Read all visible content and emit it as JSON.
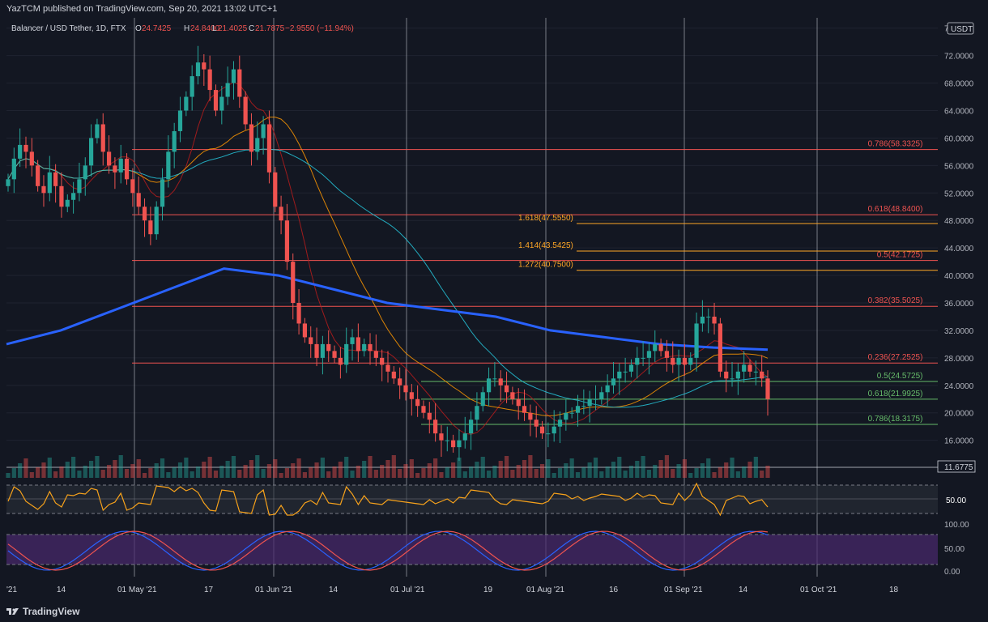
{
  "header": {
    "published": "YazTCM published on TradingView.com, Sep 20, 2021 13:02 UTC+1"
  },
  "legend": {
    "symbol": "Balancer / USD Tether, 1D, FTX",
    "open_label": "O",
    "open": "24.7425",
    "high_label": "H",
    "high": "24.8400",
    "low_label": "L",
    "low": "21.4025",
    "close_label": "C",
    "close": "21.7875",
    "change": "−2.9550 (−11.94%)"
  },
  "currency_badge": "USDT",
  "colors": {
    "background": "#131722",
    "up": "#26a69a",
    "down": "#ef5350",
    "ema200": "#2962ff",
    "fib_red": "#ef5350",
    "fib_orange": "#ffa726",
    "fib_green": "#66bb6a",
    "rsi": "#f7a21b",
    "stoch_k": "#2962ff",
    "stoch_d": "#ef5350"
  },
  "price_scale": [
    "76.0000",
    "72.0000",
    "68.0000",
    "64.0000",
    "60.0000",
    "56.0000",
    "52.0000",
    "48.0000",
    "44.0000",
    "40.0000",
    "36.0000",
    "32.0000",
    "28.0000",
    "24.0000",
    "20.0000",
    "16.0000"
  ],
  "last_price_label": "11.6775",
  "rsi_scale_label": "50.00",
  "stoch_scale": [
    "100.00",
    "50.00",
    "0.00"
  ],
  "time_axis": [
    "'21",
    "14",
    "01 May '21",
    "17",
    "01 Jun '21",
    "14",
    "01 Jul '21",
    "19",
    "01 Aug '21",
    "16",
    "01 Sep '21",
    "14",
    "01 Oct '21",
    "18"
  ],
  "fib_levels": [
    {
      "label": "0.786(58.3325)",
      "value": 58.3325,
      "color": "red"
    },
    {
      "label": "0.618(48.8400)",
      "value": 48.84,
      "color": "red"
    },
    {
      "label": "1.618(47.5550)",
      "value": 47.555,
      "color": "orange"
    },
    {
      "label": "1.414(43.5425)",
      "value": 43.5425,
      "color": "orange"
    },
    {
      "label": "0.5(42.1725)",
      "value": 42.1725,
      "color": "red"
    },
    {
      "label": "1.272(40.7500)",
      "value": 40.75,
      "color": "orange"
    },
    {
      "label": "0.382(35.5025)",
      "value": 35.5025,
      "color": "red"
    },
    {
      "label": "0.236(27.2525)",
      "value": 27.2525,
      "color": "red"
    },
    {
      "label": "0.5(24.5725)",
      "value": 24.5725,
      "color": "green"
    },
    {
      "label": "0.618(21.9925)",
      "value": 21.9925,
      "color": "green"
    },
    {
      "label": "0.786(18.3175)",
      "value": 18.3175,
      "color": "green"
    }
  ],
  "footer": {
    "brand": "TradingView"
  },
  "chart_data": {
    "type": "candlestick",
    "series_closes": [
      54,
      57,
      59,
      58,
      56,
      53,
      52,
      55,
      53,
      50,
      51,
      52,
      54,
      56,
      60,
      62,
      58,
      56,
      55,
      57,
      54,
      52,
      50,
      48,
      46,
      50,
      54,
      58,
      61,
      64,
      66,
      69,
      71,
      70,
      67,
      64,
      66,
      68,
      70,
      66,
      62,
      58,
      60,
      62,
      55,
      50,
      48,
      42,
      36,
      33,
      31,
      30,
      28,
      30,
      29,
      28,
      27,
      30,
      31,
      29,
      30,
      29,
      28,
      27,
      26,
      25,
      24,
      23,
      22,
      21,
      20,
      19,
      17,
      16,
      16,
      15,
      16,
      17,
      19,
      21,
      23,
      25,
      25,
      24,
      23,
      22,
      21,
      20,
      19,
      18,
      17,
      17,
      18,
      19,
      20,
      20,
      21,
      21,
      22,
      22,
      23,
      24,
      25,
      26,
      26,
      27,
      28,
      28,
      29,
      30,
      29,
      28,
      27,
      28,
      27,
      28,
      33,
      34,
      34,
      33,
      26,
      25,
      25,
      26,
      27,
      26,
      26,
      25,
      22
    ],
    "ema200": [
      30,
      32,
      35,
      38,
      41,
      40,
      38,
      36,
      35,
      34,
      32,
      31,
      30,
      29.5,
      29.2
    ],
    "rsi_range": [
      0,
      100
    ],
    "stoch_range": [
      0,
      100
    ]
  }
}
